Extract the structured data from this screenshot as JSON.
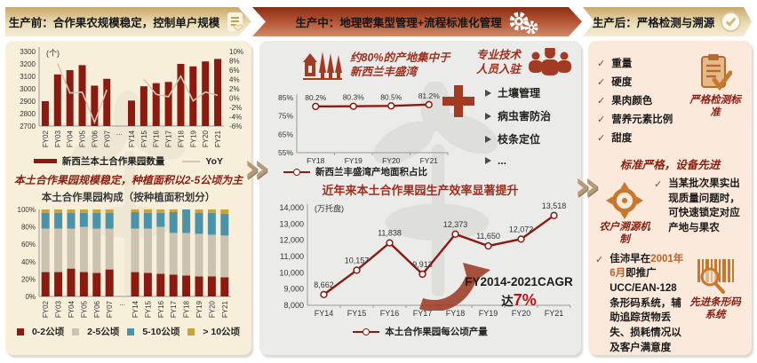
{
  "glyphs": {
    "check": "✓",
    "chevron": "»"
  },
  "headers": [
    {
      "label": "生产前：合作果农规模稳定，控制单户规模",
      "icon": "doc-heart-icon"
    },
    {
      "label": "生产中：地理密集型管理+流程标准化管理",
      "icon": "gears-icon"
    },
    {
      "label": "生产后：严格检测与溯源",
      "icon": "check-circle-icon"
    }
  ],
  "left": {
    "headline": "本土合作果园规模稳定，种植面积以2-5公顷为主"
  },
  "middle": {
    "stat_text": "约80%的产地集中于新西兰丰盛湾",
    "experts_text": "专业技术人员入驻",
    "bullets": [
      "土壤管理",
      "病虫害防治",
      "枝条定位",
      "..."
    ],
    "cagr_prefix": "FY2014-2021CAGR达",
    "cagr_value": "7%"
  },
  "right": {
    "checks": [
      "重量",
      "硬度",
      "果肉颜色",
      "营养元素比例",
      "甜度"
    ],
    "label_detection": "严格检测标准",
    "heading2": "标准严格，设备先进",
    "label_trace": "农户溯源机制",
    "trace_text": "当某批次果实出现质量问题时，可快速锁定对应产地与果农",
    "barcode_pre": "佳沛早在",
    "barcode_highlight": "2001年6月",
    "barcode_post": "即推广UCC/EAN-128条形码系统，辅助追踪货物丢失、损耗情况以及客户满意度",
    "label_barcode": "先进条形码系统"
  },
  "chart_data": [
    {
      "id": "orchard-count",
      "type": "bar",
      "unit_label": "(个)",
      "categories": [
        "FY02",
        "FY03",
        "FY04",
        "FY05",
        "FY06",
        "FY07",
        "...",
        "FY14",
        "FY15",
        "FY16",
        "FY17",
        "FY18",
        "FY19",
        "FY20",
        "FY21"
      ],
      "bars": [
        2900,
        3115,
        3150,
        3190,
        3025,
        3080,
        null,
        2905,
        3020,
        3045,
        3055,
        3200,
        3180,
        3220,
        3240
      ],
      "line_yoy_pct": [
        null,
        7.4,
        1.1,
        1.3,
        -5.2,
        1.8,
        null,
        null,
        4.0,
        0.8,
        0.3,
        4.7,
        -0.6,
        1.3,
        0.6
      ],
      "y_left": {
        "min": 2700,
        "max": 3300,
        "step": 100
      },
      "y_right": {
        "min": -6,
        "max": 10,
        "step": 2,
        "suffix": "%"
      },
      "legend": [
        "新西兰本土合作果园数量",
        "YoY"
      ],
      "bar_color": "#8b1a10",
      "line_color": "#cfc7b6"
    },
    {
      "id": "composition",
      "type": "stacked-bar-100",
      "title": "本土合作果园构成（按种植面积划分）",
      "categories": [
        "FY02",
        "FY03",
        "FY04",
        "FY05",
        "FY06",
        "FY07",
        "...",
        "FY14",
        "FY15",
        "FY16",
        "FY17",
        "FY18",
        "FY19",
        "FY20",
        "FY21"
      ],
      "series": [
        {
          "name": "0-2公顷",
          "color": "#8b1a10",
          "values": [
            28,
            28,
            32,
            28,
            27,
            31,
            null,
            28,
            27,
            26,
            25,
            24,
            23,
            23,
            22
          ]
        },
        {
          "name": "2-5公顷",
          "color": "#cbc3b0",
          "values": [
            50,
            50,
            46,
            52,
            51,
            47,
            null,
            50,
            51,
            54,
            48,
            49,
            49,
            48,
            48
          ]
        },
        {
          "name": "5-10公顷",
          "color": "#4a93a8",
          "values": [
            18,
            18,
            18,
            16,
            18,
            18,
            null,
            19,
            18,
            16,
            24,
            27,
            24,
            25,
            25
          ]
        },
        {
          "name": "> 10公顷",
          "color": "#c9a23f",
          "values": [
            4,
            4,
            4,
            4,
            4,
            4,
            null,
            3,
            4,
            4,
            3,
            0,
            4,
            4,
            5
          ]
        }
      ],
      "y": {
        "min": 0,
        "max": 100,
        "step": 20,
        "suffix": "%"
      }
    },
    {
      "id": "bay-share",
      "type": "line",
      "categories": [
        "FY18",
        "FY19",
        "FY20",
        "FY21"
      ],
      "values": [
        80.2,
        80.3,
        80.5,
        81.2
      ],
      "labels": [
        "80.2%",
        "80.3%",
        "80.5%",
        "81.2%"
      ],
      "y": {
        "min": 55,
        "max": 85,
        "step": 10,
        "suffix": "%"
      },
      "legend": [
        "新西兰丰盛湾产地面积占比"
      ],
      "line_color": "#8b1a10"
    },
    {
      "id": "yield-per-hectare",
      "type": "line",
      "title": "近年来本土合作果园生产效率显著提升",
      "unit_label": "(万托盘)",
      "categories": [
        "FY14",
        "FY15",
        "FY16",
        "FY17",
        "FY18",
        "FY19",
        "FY20",
        "FY21"
      ],
      "values": [
        8662,
        10157,
        11838,
        9913,
        12373,
        11650,
        12072,
        13518
      ],
      "labels": [
        "8,662",
        "10,157",
        "11,838",
        "9,913",
        "12,373",
        "11,650",
        "12,072",
        "13,518"
      ],
      "y": {
        "min": 8000,
        "max": 14000,
        "step": 1000,
        "comma": true
      },
      "legend": [
        "本土合作果园每公顷产量"
      ],
      "line_color": "#8b1a10"
    }
  ]
}
